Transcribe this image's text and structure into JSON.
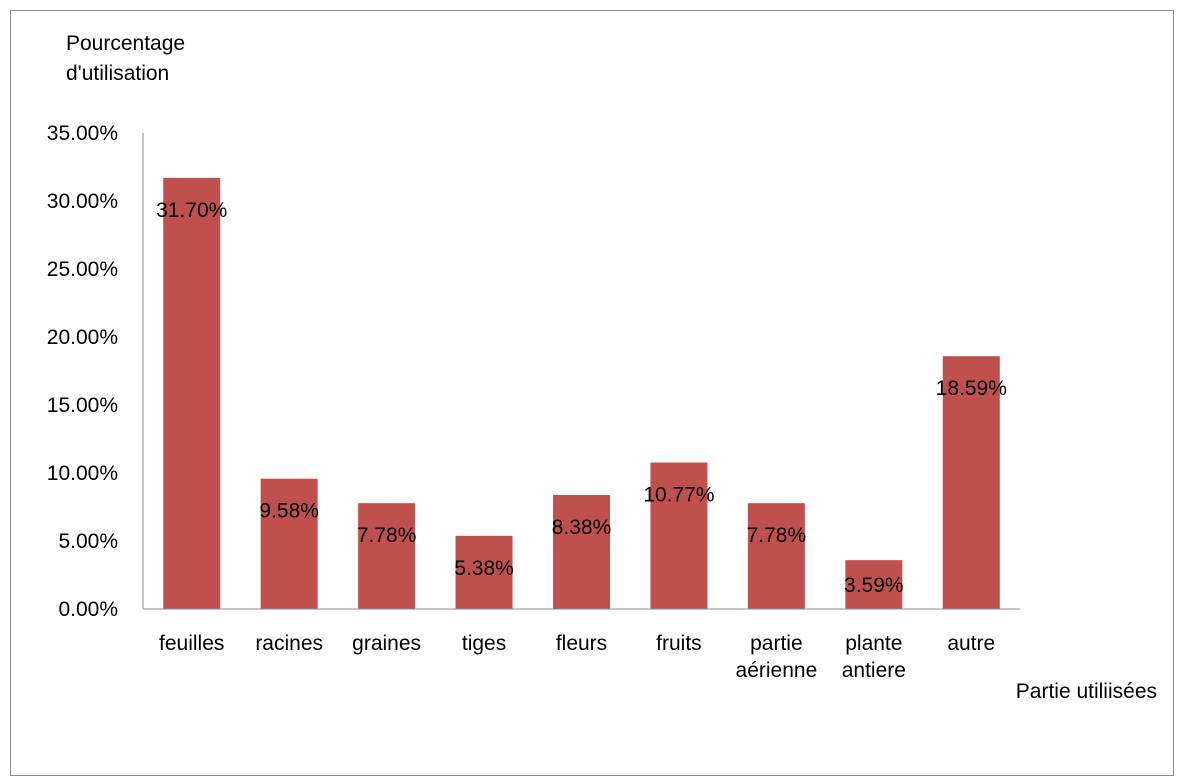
{
  "chart_data": {
    "type": "bar",
    "title": "",
    "ylabel": [
      "Pourcentage",
      "d'utilisation"
    ],
    "xlabel": "Partie utiliisées",
    "categories": [
      [
        "feuilles"
      ],
      [
        "racines"
      ],
      [
        "graines"
      ],
      [
        "tiges"
      ],
      [
        "fleurs"
      ],
      [
        "fruits"
      ],
      [
        "partie",
        "aérienne"
      ],
      [
        "plante",
        "antiere"
      ],
      [
        "autre"
      ]
    ],
    "values": [
      31.7,
      9.58,
      7.78,
      5.38,
      8.38,
      10.77,
      7.78,
      3.59,
      18.59
    ],
    "data_labels": [
      "31.70%",
      "9.58%",
      "7.78%",
      "5.38%",
      "8.38%",
      "10.77%",
      "7.78%",
      "3.59%",
      "18.59%"
    ],
    "ylim": [
      0,
      35
    ],
    "yticks": [
      "0.00%",
      "5.00%",
      "10.00%",
      "15.00%",
      "20.00%",
      "25.00%",
      "30.00%",
      "35.00%"
    ],
    "grid": false,
    "legend": "none",
    "bar_color": "#c0504d"
  }
}
